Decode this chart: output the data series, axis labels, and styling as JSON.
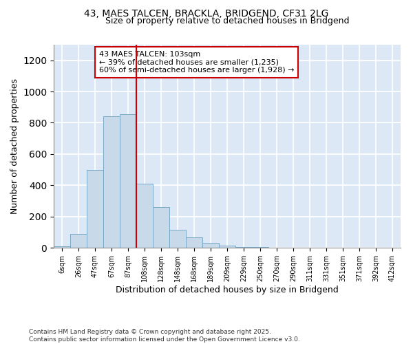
{
  "title1": "43, MAES TALCEN, BRACKLA, BRIDGEND, CF31 2LG",
  "title2": "Size of property relative to detached houses in Bridgend",
  "xlabel": "Distribution of detached houses by size in Bridgend",
  "ylabel": "Number of detached properties",
  "categories": [
    "6sqm",
    "26sqm",
    "47sqm",
    "67sqm",
    "87sqm",
    "108sqm",
    "128sqm",
    "148sqm",
    "168sqm",
    "189sqm",
    "209sqm",
    "229sqm",
    "250sqm",
    "270sqm",
    "290sqm",
    "311sqm",
    "331sqm",
    "351sqm",
    "371sqm",
    "392sqm",
    "412sqm"
  ],
  "values": [
    10,
    90,
    500,
    840,
    855,
    410,
    260,
    115,
    65,
    30,
    15,
    5,
    5,
    0,
    0,
    0,
    0,
    0,
    0,
    0,
    0
  ],
  "bar_color": "#c8daea",
  "bar_edge_color": "#7aaac8",
  "vline_x_idx": 5,
  "vline_color": "#cc0000",
  "ylim": [
    0,
    1300
  ],
  "yticks": [
    0,
    200,
    400,
    600,
    800,
    1000,
    1200
  ],
  "annotation_text": "43 MAES TALCEN: 103sqm\n← 39% of detached houses are smaller (1,235)\n60% of semi-detached houses are larger (1,928) →",
  "annotation_box_color": "#cc0000",
  "bg_color": "#dce8f5",
  "footer": "Contains HM Land Registry data © Crown copyright and database right 2025.\nContains public sector information licensed under the Open Government Licence v3.0."
}
